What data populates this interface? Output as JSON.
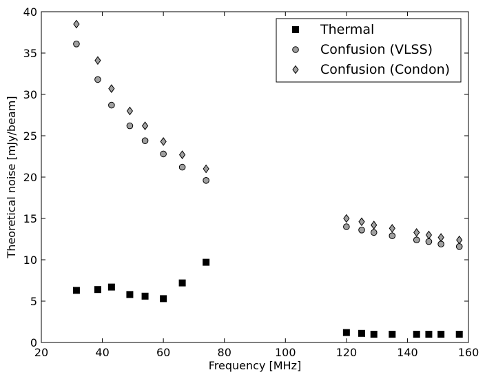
{
  "chart_data": {
    "type": "scatter",
    "title": "",
    "xlabel": "Frequency [MHz]",
    "ylabel": "Theoretical noise [mJy/beam]",
    "xlim": [
      20,
      160
    ],
    "ylim": [
      0,
      40
    ],
    "xticks": [
      20,
      40,
      60,
      80,
      100,
      120,
      140,
      160
    ],
    "yticks": [
      0,
      5,
      10,
      15,
      20,
      25,
      30,
      35,
      40
    ],
    "legend_position": "top-right",
    "series": [
      {
        "name": "Thermal",
        "marker": "square",
        "color": "#000000",
        "x": [
          31.5,
          38.5,
          43,
          49,
          54,
          60,
          66.2,
          74,
          120,
          125,
          129,
          135,
          143,
          147,
          151,
          157
        ],
        "y": [
          6.3,
          6.4,
          6.7,
          5.8,
          5.6,
          5.3,
          7.2,
          9.7,
          1.2,
          1.1,
          1.0,
          1.0,
          1.0,
          1.0,
          1.0,
          1.0
        ]
      },
      {
        "name": "Confusion (VLSS)",
        "marker": "circle",
        "color": "#a0a0a0",
        "x": [
          31.5,
          38.5,
          43,
          49,
          54,
          60,
          66.2,
          74,
          120,
          125,
          129,
          135,
          143,
          147,
          151,
          157
        ],
        "y": [
          36.1,
          31.8,
          28.7,
          26.2,
          24.4,
          22.8,
          21.2,
          19.6,
          14.0,
          13.6,
          13.3,
          12.9,
          12.4,
          12.2,
          11.9,
          11.6
        ]
      },
      {
        "name": "Confusion (Condon)",
        "marker": "diamond",
        "color": "#a0a0a0",
        "x": [
          31.5,
          38.5,
          43,
          49,
          54,
          60,
          66.2,
          74,
          120,
          125,
          129,
          135,
          143,
          147,
          151,
          157
        ],
        "y": [
          38.5,
          34.1,
          30.7,
          28.0,
          26.2,
          24.3,
          22.7,
          21.0,
          15.0,
          14.6,
          14.2,
          13.8,
          13.3,
          13.0,
          12.7,
          12.4
        ]
      }
    ]
  }
}
